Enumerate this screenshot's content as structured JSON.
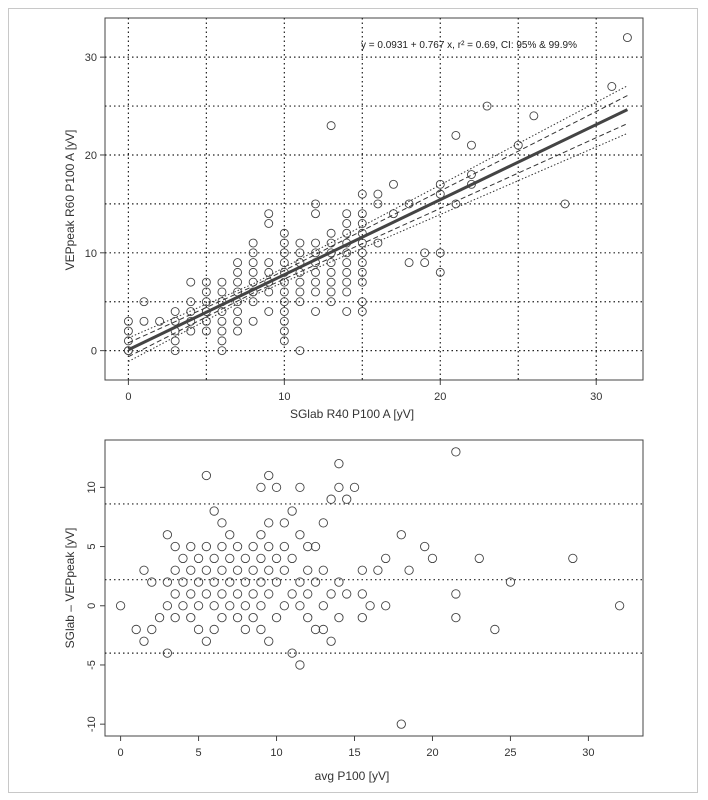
{
  "chart_data": [
    {
      "type": "scatter",
      "title": "",
      "xlabel": "SGlab R40 P100 A [yV]",
      "ylabel": "VEPpeak R60 P100 A [yV]",
      "xlim": [
        -1.5,
        33
      ],
      "ylim": [
        -3,
        34
      ],
      "xticks": [
        0,
        10,
        20,
        30
      ],
      "yticks": [
        0,
        10,
        20,
        30
      ],
      "grid": true,
      "annotation": "y = 0.0931 + 0.767 x,  r² = 0.69, CI: 95% & 99.9%",
      "regression": {
        "intercept": 0.0931,
        "slope": 0.767,
        "x_range": [
          0,
          32
        ]
      },
      "points": [
        [
          0,
          0
        ],
        [
          0,
          0
        ],
        [
          0,
          1
        ],
        [
          0,
          2
        ],
        [
          0,
          3
        ],
        [
          1,
          3
        ],
        [
          1,
          5
        ],
        [
          2,
          3
        ],
        [
          3,
          0
        ],
        [
          3,
          1
        ],
        [
          3,
          2
        ],
        [
          3,
          3
        ],
        [
          3,
          4
        ],
        [
          4,
          2
        ],
        [
          4,
          3
        ],
        [
          4,
          4
        ],
        [
          4,
          5
        ],
        [
          4,
          7
        ],
        [
          5,
          2
        ],
        [
          5,
          3
        ],
        [
          5,
          4
        ],
        [
          5,
          5
        ],
        [
          5,
          6
        ],
        [
          5,
          7
        ],
        [
          6,
          0
        ],
        [
          6,
          1
        ],
        [
          6,
          2
        ],
        [
          6,
          3
        ],
        [
          6,
          4
        ],
        [
          6,
          5
        ],
        [
          6,
          6
        ],
        [
          6,
          7
        ],
        [
          7,
          2
        ],
        [
          7,
          3
        ],
        [
          7,
          4
        ],
        [
          7,
          5
        ],
        [
          7,
          6
        ],
        [
          7,
          7
        ],
        [
          7,
          8
        ],
        [
          7,
          9
        ],
        [
          8,
          3
        ],
        [
          8,
          5
        ],
        [
          8,
          6
        ],
        [
          8,
          7
        ],
        [
          8,
          8
        ],
        [
          8,
          9
        ],
        [
          8,
          10
        ],
        [
          8,
          11
        ],
        [
          9,
          4
        ],
        [
          9,
          6
        ],
        [
          9,
          7
        ],
        [
          9,
          8
        ],
        [
          9,
          9
        ],
        [
          9,
          13
        ],
        [
          9,
          14
        ],
        [
          10,
          1
        ],
        [
          10,
          2
        ],
        [
          10,
          3
        ],
        [
          10,
          4
        ],
        [
          10,
          5
        ],
        [
          10,
          6
        ],
        [
          10,
          7
        ],
        [
          10,
          8
        ],
        [
          10,
          9
        ],
        [
          10,
          10
        ],
        [
          10,
          11
        ],
        [
          10,
          12
        ],
        [
          11,
          0
        ],
        [
          11,
          5
        ],
        [
          11,
          6
        ],
        [
          11,
          7
        ],
        [
          11,
          8
        ],
        [
          11,
          9
        ],
        [
          11,
          10
        ],
        [
          11,
          11
        ],
        [
          12,
          4
        ],
        [
          12,
          6
        ],
        [
          12,
          7
        ],
        [
          12,
          8
        ],
        [
          12,
          9
        ],
        [
          12,
          10
        ],
        [
          12,
          11
        ],
        [
          12,
          14
        ],
        [
          12,
          15
        ],
        [
          13,
          5
        ],
        [
          13,
          6
        ],
        [
          13,
          7
        ],
        [
          13,
          8
        ],
        [
          13,
          9
        ],
        [
          13,
          10
        ],
        [
          13,
          11
        ],
        [
          13,
          12
        ],
        [
          13,
          23
        ],
        [
          14,
          4
        ],
        [
          14,
          6
        ],
        [
          14,
          7
        ],
        [
          14,
          8
        ],
        [
          14,
          9
        ],
        [
          14,
          10
        ],
        [
          14,
          11
        ],
        [
          14,
          12
        ],
        [
          14,
          13
        ],
        [
          14,
          14
        ],
        [
          15,
          4
        ],
        [
          15,
          5
        ],
        [
          15,
          7
        ],
        [
          15,
          8
        ],
        [
          15,
          9
        ],
        [
          15,
          10
        ],
        [
          15,
          11
        ],
        [
          15,
          12
        ],
        [
          15,
          13
        ],
        [
          15,
          14
        ],
        [
          15,
          16
        ],
        [
          16,
          11
        ],
        [
          16,
          15
        ],
        [
          16,
          16
        ],
        [
          17,
          14
        ],
        [
          17,
          17
        ],
        [
          18,
          9
        ],
        [
          18,
          15
        ],
        [
          19,
          9
        ],
        [
          19,
          10
        ],
        [
          20,
          8
        ],
        [
          20,
          10
        ],
        [
          20,
          16
        ],
        [
          20,
          17
        ],
        [
          21,
          15
        ],
        [
          21,
          22
        ],
        [
          22,
          17
        ],
        [
          22,
          18
        ],
        [
          22,
          21
        ],
        [
          23,
          25
        ],
        [
          25,
          21
        ],
        [
          26,
          24
        ],
        [
          28,
          15
        ],
        [
          31,
          27
        ],
        [
          32,
          32
        ]
      ]
    },
    {
      "type": "scatter",
      "title": "",
      "xlabel": "avg P100 [yV]",
      "ylabel": "SGlab – VEPpeak [yV]",
      "xlim": [
        -1,
        33.5
      ],
      "ylim": [
        -11,
        14
      ],
      "xticks": [
        0,
        5,
        10,
        15,
        20,
        25,
        30
      ],
      "yticks": [
        -10,
        -5,
        0,
        5,
        10
      ],
      "reference_lines": [
        8.6,
        2.2,
        -4
      ],
      "points": [
        [
          0,
          0
        ],
        [
          1,
          -2
        ],
        [
          1.5,
          -3
        ],
        [
          1.5,
          3
        ],
        [
          2,
          -2
        ],
        [
          2,
          2
        ],
        [
          2.5,
          -1
        ],
        [
          3,
          -4
        ],
        [
          3,
          0
        ],
        [
          3,
          2
        ],
        [
          3,
          6
        ],
        [
          3.5,
          -1
        ],
        [
          3.5,
          1
        ],
        [
          3.5,
          3
        ],
        [
          3.5,
          5
        ],
        [
          4,
          0
        ],
        [
          4,
          2
        ],
        [
          4,
          4
        ],
        [
          4.5,
          -1
        ],
        [
          4.5,
          1
        ],
        [
          4.5,
          3
        ],
        [
          4.5,
          5
        ],
        [
          5,
          -2
        ],
        [
          5,
          0
        ],
        [
          5,
          2
        ],
        [
          5,
          4
        ],
        [
          5.5,
          -3
        ],
        [
          5.5,
          1
        ],
        [
          5.5,
          3
        ],
        [
          5.5,
          5
        ],
        [
          5.5,
          11
        ],
        [
          6,
          -2
        ],
        [
          6,
          0
        ],
        [
          6,
          2
        ],
        [
          6,
          4
        ],
        [
          6,
          8
        ],
        [
          6.5,
          -1
        ],
        [
          6.5,
          1
        ],
        [
          6.5,
          3
        ],
        [
          6.5,
          5
        ],
        [
          6.5,
          7
        ],
        [
          7,
          0
        ],
        [
          7,
          2
        ],
        [
          7,
          4
        ],
        [
          7,
          6
        ],
        [
          7.5,
          -1
        ],
        [
          7.5,
          1
        ],
        [
          7.5,
          3
        ],
        [
          7.5,
          5
        ],
        [
          8,
          -2
        ],
        [
          8,
          0
        ],
        [
          8,
          2
        ],
        [
          8,
          4
        ],
        [
          8.5,
          -1
        ],
        [
          8.5,
          1
        ],
        [
          8.5,
          3
        ],
        [
          8.5,
          5
        ],
        [
          9,
          -2
        ],
        [
          9,
          0
        ],
        [
          9,
          2
        ],
        [
          9,
          4
        ],
        [
          9,
          6
        ],
        [
          9,
          10
        ],
        [
          9.5,
          -3
        ],
        [
          9.5,
          1
        ],
        [
          9.5,
          3
        ],
        [
          9.5,
          5
        ],
        [
          9.5,
          7
        ],
        [
          9.5,
          11
        ],
        [
          10,
          -1
        ],
        [
          10,
          2
        ],
        [
          10,
          4
        ],
        [
          10,
          10
        ],
        [
          10.5,
          0
        ],
        [
          10.5,
          3
        ],
        [
          10.5,
          5
        ],
        [
          10.5,
          7
        ],
        [
          11,
          -4
        ],
        [
          11,
          1
        ],
        [
          11,
          4
        ],
        [
          11,
          8
        ],
        [
          11.5,
          -5
        ],
        [
          11.5,
          0
        ],
        [
          11.5,
          2
        ],
        [
          11.5,
          6
        ],
        [
          11.5,
          10
        ],
        [
          12,
          -1
        ],
        [
          12,
          1
        ],
        [
          12,
          3
        ],
        [
          12,
          5
        ],
        [
          12.5,
          -2
        ],
        [
          12.5,
          2
        ],
        [
          12.5,
          5
        ],
        [
          13,
          -2
        ],
        [
          13,
          0
        ],
        [
          13,
          3
        ],
        [
          13,
          7
        ],
        [
          13.5,
          -3
        ],
        [
          13.5,
          1
        ],
        [
          13.5,
          9
        ],
        [
          14,
          -1
        ],
        [
          14,
          2
        ],
        [
          14,
          10
        ],
        [
          14,
          12
        ],
        [
          14.5,
          1
        ],
        [
          14.5,
          9
        ],
        [
          15,
          10
        ],
        [
          15.5,
          -1
        ],
        [
          15.5,
          1
        ],
        [
          15.5,
          3
        ],
        [
          16,
          0
        ],
        [
          16.5,
          3
        ],
        [
          17,
          0
        ],
        [
          17,
          4
        ],
        [
          18,
          -10
        ],
        [
          18,
          6
        ],
        [
          18.5,
          3
        ],
        [
          19.5,
          5
        ],
        [
          20,
          4
        ],
        [
          21.5,
          -1
        ],
        [
          21.5,
          1
        ],
        [
          21.5,
          13
        ],
        [
          23,
          4
        ],
        [
          24,
          -2
        ],
        [
          25,
          2
        ],
        [
          29,
          4
        ],
        [
          32,
          0
        ]
      ]
    }
  ]
}
